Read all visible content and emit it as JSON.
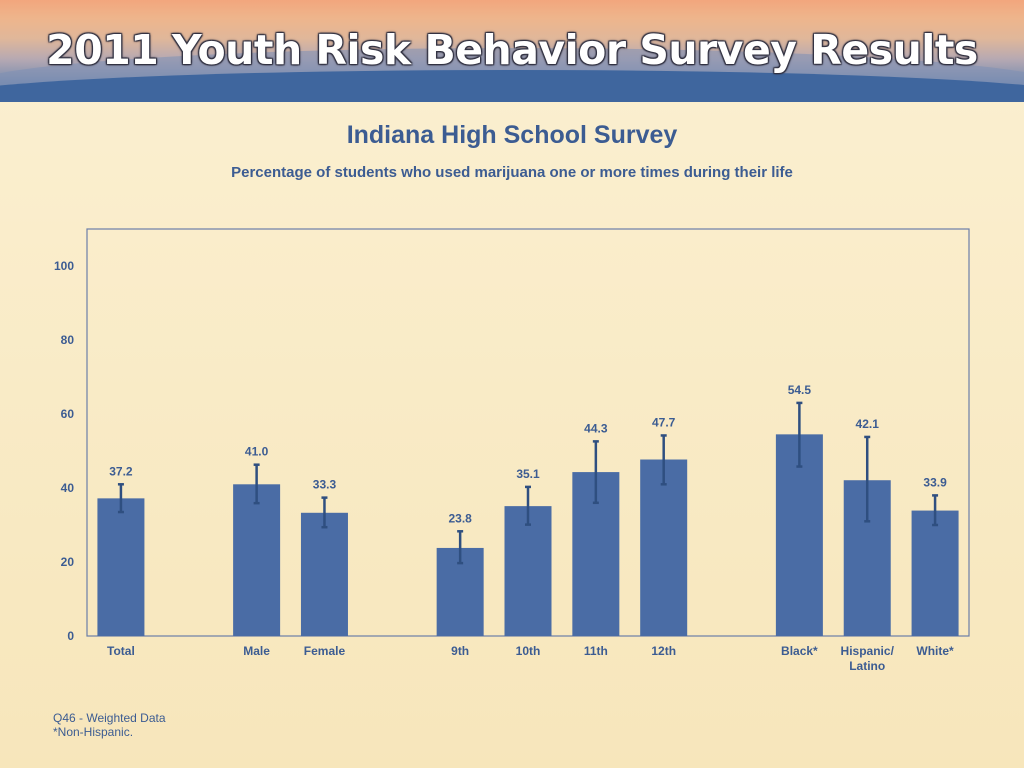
{
  "header": {
    "title": "2011 Youth Risk Behavior Survey Results"
  },
  "chart_data": {
    "type": "bar",
    "title": "Indiana High School Survey",
    "subtitle": "Percentage of students who used marijuana one or more times during their life",
    "xlabel": "",
    "ylabel": "",
    "ylim": [
      0,
      110
    ],
    "yticks": [
      0,
      20,
      40,
      60,
      80,
      100
    ],
    "grid": false,
    "categories": [
      "Total",
      "Male",
      "Female",
      "9th",
      "10th",
      "11th",
      "12th",
      "Black*",
      "Hispanic/\nLatino",
      "White*"
    ],
    "groups": [
      [
        "Total"
      ],
      [
        "Male",
        "Female"
      ],
      [
        "9th",
        "10th",
        "11th",
        "12th"
      ],
      [
        "Black*",
        "Hispanic/\nLatino",
        "White*"
      ]
    ],
    "values": [
      37.2,
      41.0,
      33.3,
      23.8,
      35.1,
      44.3,
      47.7,
      54.5,
      42.1,
      33.9
    ],
    "value_labels": [
      "37.2",
      "41.0",
      "33.3",
      "23.8",
      "35.1",
      "44.3",
      "47.7",
      "54.5",
      "42.1",
      "33.9"
    ],
    "error_low": [
      33.5,
      35.9,
      29.4,
      19.7,
      30.1,
      36.0,
      41.0,
      45.8,
      31.0,
      30.0
    ],
    "error_high": [
      41.0,
      46.3,
      37.4,
      28.3,
      40.3,
      52.6,
      54.2,
      63.0,
      53.8,
      38.0
    ],
    "colors": {
      "bar": "#4a6ca5",
      "error_bar": "#2f4f80",
      "text": "#3c5c92",
      "frame": "#6b7ea8"
    }
  },
  "footnotes": [
    "Q46 - Weighted Data",
    "*Non-Hispanic."
  ]
}
